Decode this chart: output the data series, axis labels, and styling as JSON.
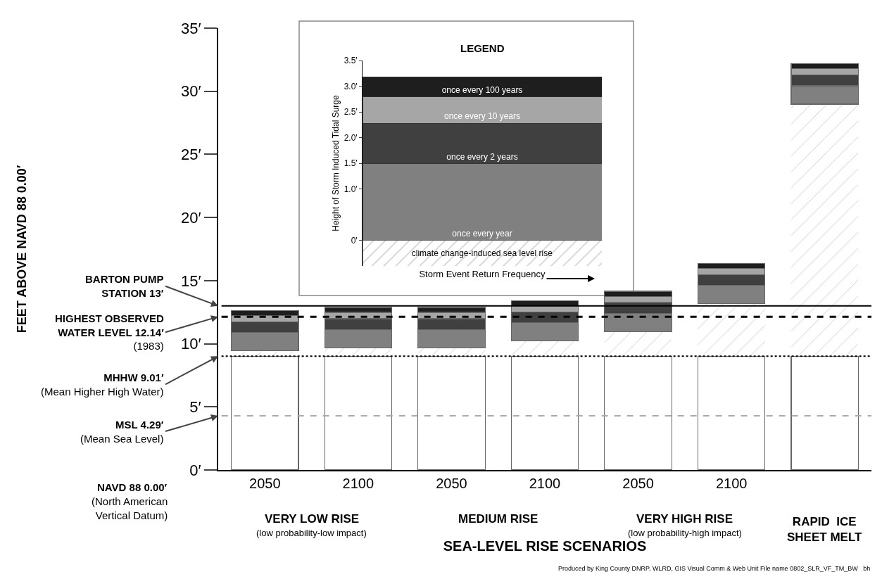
{
  "chart_data": [
    {
      "type": "bar",
      "stacked": true,
      "xlabel": "SEA-LEVEL RISE SCENARIOS",
      "ylabel": "FEET ABOVE NAVD 88 0.00′",
      "categories": [
        "2050",
        "2100",
        "2050",
        "2100",
        "2050",
        "2100",
        null
      ],
      "ylim": [
        0,
        35
      ],
      "yticks": [
        {
          "value": 0,
          "label": "0′"
        },
        {
          "value": 5,
          "label": "5′"
        },
        {
          "value": 10,
          "label": "10′"
        },
        {
          "value": 15,
          "label": "15′"
        },
        {
          "value": 20,
          "label": "20′"
        },
        {
          "value": 25,
          "label": "25′"
        },
        {
          "value": 30,
          "label": "30′"
        },
        {
          "value": 35,
          "label": "35′"
        }
      ],
      "series": [
        {
          "color": "#ffffff",
          "values": [
            9.01,
            9.01,
            9.01,
            9.01,
            9.01,
            9.01,
            9.01
          ]
        },
        {
          "color": "#ffffff",
          "values": [
            0.43,
            0.67,
            0.67,
            1.2,
            1.95,
            4.16,
            19.97
          ]
        },
        {
          "color": "#808080",
          "values": [
            1.45,
            1.45,
            1.45,
            1.45,
            1.45,
            1.45,
            1.45
          ]
        },
        {
          "color": "#404040",
          "values": [
            0.85,
            0.85,
            0.85,
            0.85,
            0.85,
            0.85,
            0.85
          ]
        },
        {
          "color": "#a6a6a6",
          "values": [
            0.5,
            0.5,
            0.5,
            0.5,
            0.5,
            0.5,
            0.5
          ]
        },
        {
          "color": "#1e1e1e",
          "values": [
            0.4,
            0.4,
            0.4,
            0.4,
            0.4,
            0.4,
            0.4
          ]
        }
      ],
      "ref_lines": [
        {
          "axis": "y",
          "value": 13,
          "label": "BARTON PUMP\nSTATION 13′",
          "color": "#000000",
          "line_style": "solid"
        },
        {
          "axis": "y",
          "value": 12.14,
          "label": "HIGHEST OBSERVED\nWATER LEVEL 12.14′\n(1983)",
          "color": "#000000",
          "line_style": "dashed"
        },
        {
          "axis": "y",
          "value": 9.01,
          "label": "MHHW 9.01′\n(Mean Higher High Water)",
          "color": "#000000",
          "line_style": "dotted"
        },
        {
          "axis": "y",
          "value": 4.29,
          "label": "MSL 4.29′\n(Mean Sea Level)",
          "color": "#aaaaaa",
          "line_style": "dashed"
        }
      ],
      "annotations": [
        "VERY LOW RISE",
        "(low probability-low impact)",
        "MEDIUM RISE",
        "VERY HIGH RISE",
        "(low probability-high impact)",
        "RAPID  ICE\nSHEET MELT",
        "NAVD 88 0.00′",
        "(North American\nVertical Datum)",
        "Produced by King County DNRP, WLRD, GIS Visual Comm & Web Unit File name 0802_SLR_VF_TM_BW   bh"
      ]
    },
    {
      "type": "bar",
      "stacked": true,
      "title": "LEGEND",
      "xlabel": "Storm Event Return Frequency",
      "ylabel": "Height of Storm Induced Tidal Surge",
      "categories": [
        null
      ],
      "ylim": [
        -0.5,
        3.5
      ],
      "yticks": [
        {
          "value": 0,
          "label": "0′"
        },
        {
          "value": 1,
          "label": "1.0′"
        },
        {
          "value": 1.5,
          "label": "1.5′"
        },
        {
          "value": 2,
          "label": "2.0′"
        },
        {
          "value": 2.5,
          "label": "2.5′"
        },
        {
          "value": 3,
          "label": "3.0′"
        },
        {
          "value": 3.5,
          "label": "3.5′"
        }
      ],
      "series": [
        {
          "name": "once every year",
          "color": "#808080",
          "values": [
            1.49
          ]
        },
        {
          "name": "once every 2 years",
          "color": "#404040",
          "values": [
            0.79
          ]
        },
        {
          "name": "once every 10 years",
          "color": "#a6a6a6",
          "values": [
            0.51
          ]
        },
        {
          "name": "once every 100 years",
          "color": "#1e1e1e",
          "values": [
            0.39
          ]
        }
      ],
      "bands": [
        {
          "axis": "y",
          "from": -0.5,
          "to": 0,
          "label": "climate change-induced sea level rise"
        }
      ]
    }
  ]
}
